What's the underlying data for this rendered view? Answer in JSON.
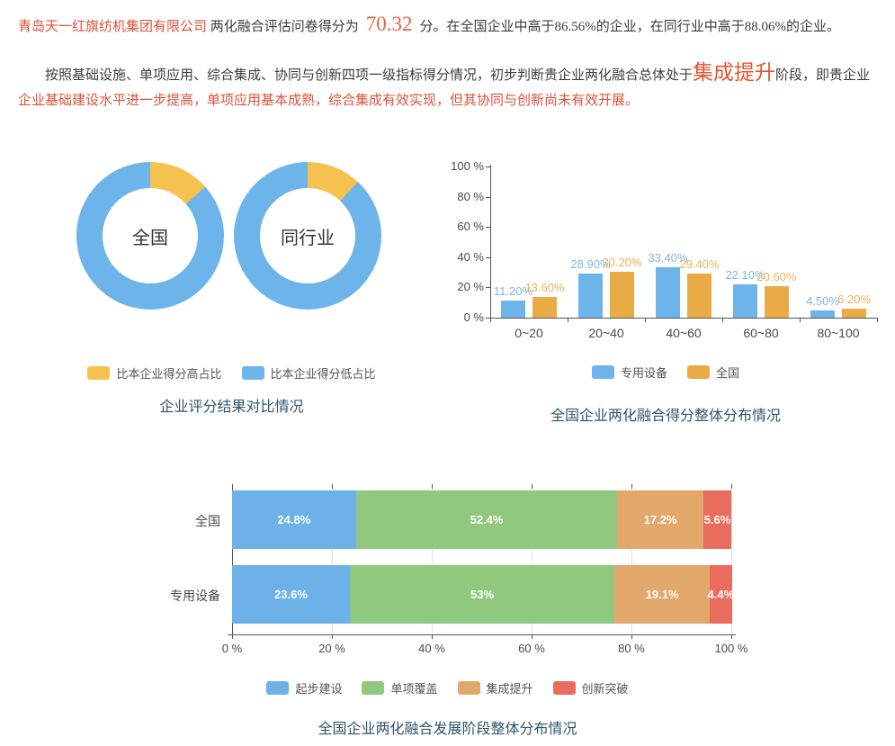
{
  "report": {
    "para1": {
      "company": "青岛天一红旗纺机集团有限公司",
      "mid": "两化融合评估问卷得分为",
      "score": "70.32",
      "tail": "分。在全国企业中高于86.56%的企业，在同行业中高于88.06%的企业。"
    },
    "para2": {
      "lead": "按照基础设施、单项应用、综合集成、协同与创新四项一级指标得分情况，初步判断贵企业两化融合总体处于",
      "stage": "集成提升",
      "mid": "阶段，即贵企业",
      "tail": "企业基础建设水平进一步提高，单项应用基本成熟，综合集成有效实现，但其协同与创新尚未有效开展。"
    }
  },
  "colors": {
    "blue": "#6db4ea",
    "yellow": "#f6c24f",
    "bar_orange": "#e9ab45",
    "blue_label": "#7fb5e6",
    "orange_label": "#edb158",
    "stacked_blue": "#6cb1e8",
    "stacked_green": "#90c87e",
    "stacked_orange": "#e2a76a",
    "stacked_red": "#e96c5f",
    "red_text": "#e0503a",
    "accent_orange": "#e4643c",
    "title": "#31536a"
  },
  "chart_data": [
    {
      "type": "pie",
      "subtype": "donut",
      "title": "企业评分结果对比情况",
      "legend": [
        {
          "label": "比本企业得分高占比",
          "color": "#f6c24f"
        },
        {
          "label": "比本企业得分低占比",
          "color": "#6db4ea"
        }
      ],
      "donuts": [
        {
          "label": "全国",
          "values": [
            13.44,
            86.56
          ]
        },
        {
          "label": "同行业",
          "values": [
            11.94,
            88.06
          ]
        }
      ]
    },
    {
      "type": "bar",
      "title": "全国企业两化融合得分整体分布情况",
      "categories": [
        "0~20",
        "20~40",
        "40~60",
        "60~80",
        "80~100"
      ],
      "ylim": [
        0,
        100
      ],
      "ytick_labels": [
        "0 %",
        "20 %",
        "40 %",
        "60 %",
        "80 %",
        "100 %"
      ],
      "series": [
        {
          "name": "专用设备",
          "color": "#6db4ea",
          "label_color": "#7fb5e6",
          "values": [
            11.2,
            28.9,
            33.4,
            22.1,
            4.5
          ],
          "labels": [
            "11.20%",
            "28.90%",
            "33.40%",
            "22.10%",
            "4.50%"
          ]
        },
        {
          "name": "全国",
          "color": "#e9ab45",
          "label_color": "#edb158",
          "values": [
            13.6,
            30.2,
            29.4,
            20.6,
            6.2
          ],
          "labels": [
            "13.60%",
            "30.20%",
            "29.40%",
            "20.60%",
            "6.20%"
          ]
        }
      ]
    },
    {
      "type": "bar",
      "subtype": "stacked-horizontal",
      "title": "全国企业两化融合发展阶段整体分布情况",
      "categories": [
        "全国",
        "专用设备"
      ],
      "xlim": [
        0,
        100
      ],
      "xtick_labels": [
        "0 %",
        "20 %",
        "40 %",
        "60 %",
        "80 %",
        "100 %"
      ],
      "series": [
        {
          "name": "起步建设",
          "color": "#6cb1e8",
          "values": [
            24.8,
            23.6
          ]
        },
        {
          "name": "单项覆盖",
          "color": "#90c87e",
          "values": [
            52.4,
            53
          ]
        },
        {
          "name": "集成提升",
          "color": "#e2a76a",
          "values": [
            17.2,
            19.1
          ]
        },
        {
          "name": "创新突破",
          "color": "#e96c5f",
          "values": [
            5.6,
            4.4
          ]
        }
      ],
      "value_labels": [
        [
          "24.8%",
          "52.4%",
          "17.2%",
          "5.6%"
        ],
        [
          "23.6%",
          "53%",
          "19.1%",
          "4.4%"
        ]
      ]
    }
  ]
}
